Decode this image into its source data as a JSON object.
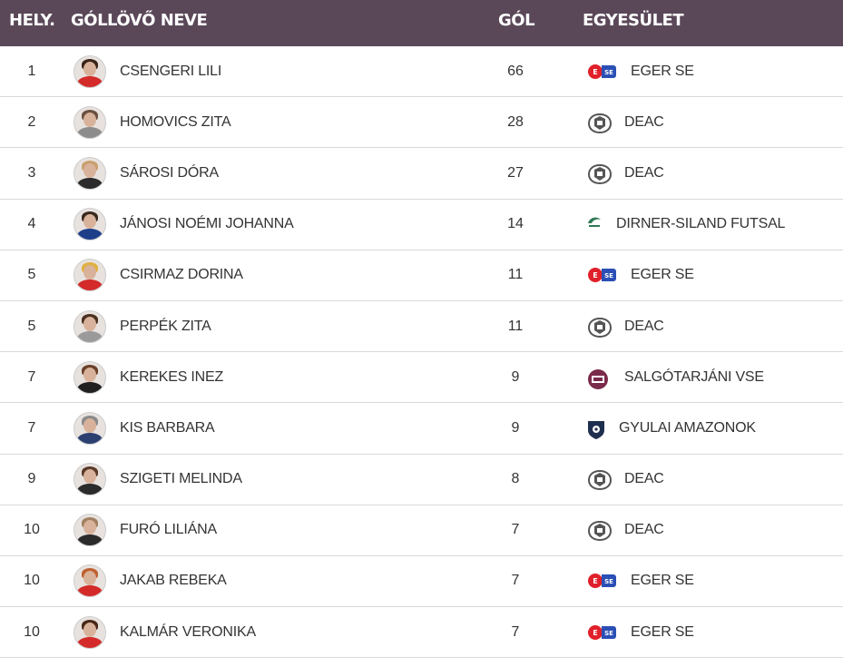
{
  "header": {
    "rank": "HELY.",
    "name": "GÓLLÖVŐ NEVE",
    "goals": "GÓL",
    "club": "EGYESÜLET"
  },
  "colors": {
    "header_bg": "#5a4859",
    "eger_red": "#e0202a",
    "eger_blue": "#2a4fb5",
    "deac": "#555555",
    "dirner": "#2f7a55",
    "salgotarjan": "#7a2a4a",
    "gyula": "#1f2f4f"
  },
  "rows": [
    {
      "rank": "1",
      "name": "CSENGERI LILI",
      "goals": "66",
      "club": "EGER SE",
      "logo": "eger-se-logo",
      "shirt": "#d42a2a",
      "hair": "#3a2418"
    },
    {
      "rank": "2",
      "name": "HOMOVICS ZITA",
      "goals": "28",
      "club": "DEAC",
      "logo": "deac-logo",
      "shirt": "#8c8c8c",
      "hair": "#6a5040"
    },
    {
      "rank": "3",
      "name": "SÁROSI DÓRA",
      "goals": "27",
      "club": "DEAC",
      "logo": "deac-logo",
      "shirt": "#2b2b2b",
      "hair": "#c8a070"
    },
    {
      "rank": "4",
      "name": "JÁNOSI NOÉMI JOHANNA",
      "goals": "14",
      "club": "DIRNER-SILAND FUTSAL",
      "logo": "dirner-logo",
      "shirt": "#1d3f8a",
      "hair": "#3a2a20"
    },
    {
      "rank": "5",
      "name": "CSIRMAZ DORINA",
      "goals": "11",
      "club": "EGER SE",
      "logo": "eger-se-logo",
      "shirt": "#d42a2a",
      "hair": "#e0b040"
    },
    {
      "rank": "5",
      "name": "PERPÉK ZITA",
      "goals": "11",
      "club": "DEAC",
      "logo": "deac-logo",
      "shirt": "#9a9a9a",
      "hair": "#4a3020"
    },
    {
      "rank": "7",
      "name": "KEREKES INEZ",
      "goals": "9",
      "club": "SALGÓTARJÁNI VSE",
      "logo": "salgotarjan-logo",
      "shirt": "#202020",
      "hair": "#6a4028"
    },
    {
      "rank": "7",
      "name": "KIS BARBARA",
      "goals": "9",
      "club": "GYULAI AMAZONOK",
      "logo": "gyula-logo",
      "shirt": "#2b3f70",
      "hair": "#8a8a8a"
    },
    {
      "rank": "9",
      "name": "SZIGETI MELINDA",
      "goals": "8",
      "club": "DEAC",
      "logo": "deac-logo",
      "shirt": "#2b2b2b",
      "hair": "#5a3a28"
    },
    {
      "rank": "10",
      "name": "FURÓ LILIÁNA",
      "goals": "7",
      "club": "DEAC",
      "logo": "deac-logo",
      "shirt": "#2b2b2b",
      "hair": "#a08060"
    },
    {
      "rank": "10",
      "name": "JAKAB REBEKA",
      "goals": "7",
      "club": "EGER SE",
      "logo": "eger-se-logo",
      "shirt": "#d42a2a",
      "hair": "#c06030"
    },
    {
      "rank": "10",
      "name": "KALMÁR VERONIKA",
      "goals": "7",
      "club": "EGER SE",
      "logo": "eger-se-logo",
      "shirt": "#d42a2a",
      "hair": "#4a2818"
    }
  ]
}
